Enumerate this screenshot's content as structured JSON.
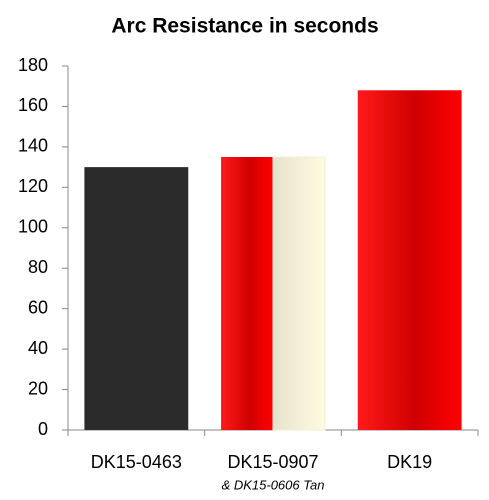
{
  "chart_data": {
    "type": "bar",
    "title": "Arc Resistance in seconds",
    "categories": [
      "DK15-0463",
      "DK15-0907",
      "DK19"
    ],
    "values": [
      130,
      135,
      168
    ],
    "colors": [
      "#2b2b2b",
      "#e00000",
      "#e80000"
    ],
    "annotation": {
      "text": "& DK15-0606 Tan",
      "category": 1,
      "color": "#f4efd6"
    },
    "ylim": [
      0,
      180
    ],
    "yticks": [
      0,
      20,
      40,
      60,
      80,
      100,
      120,
      140,
      160,
      180
    ],
    "grid": false
  }
}
